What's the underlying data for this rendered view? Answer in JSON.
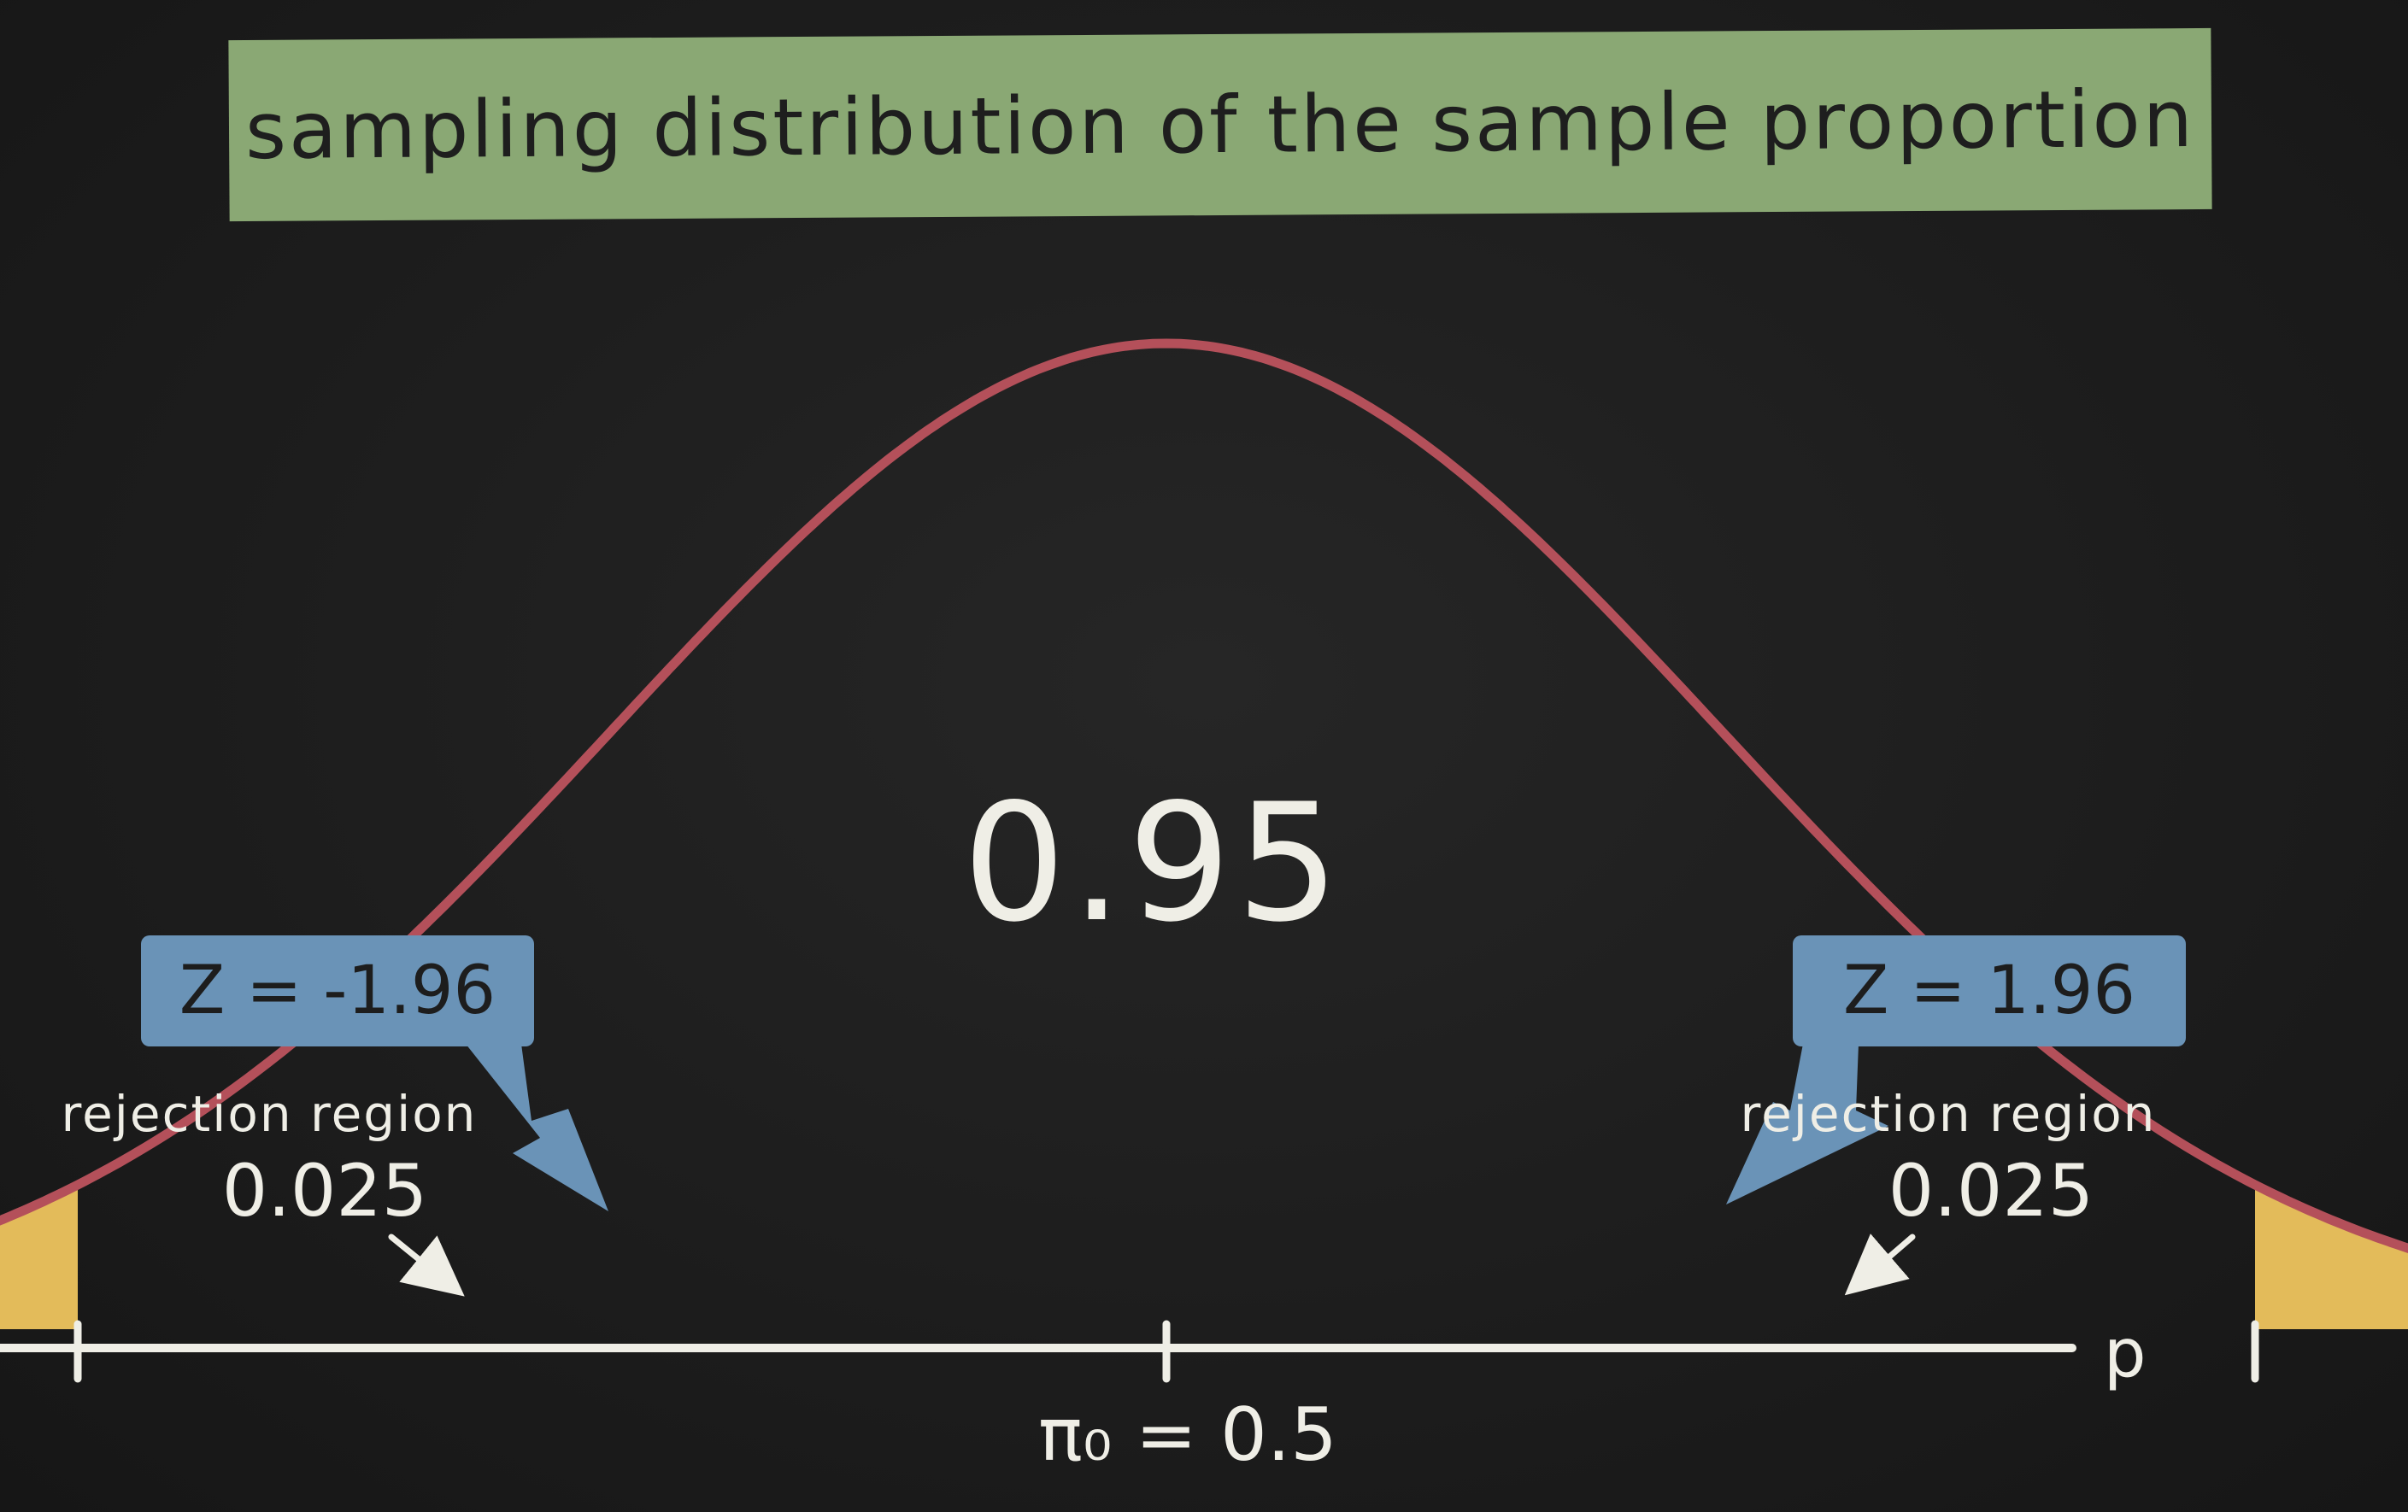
{
  "title": "sampling distribution of the sample proportion",
  "center_probability": "0.95",
  "left_tail": {
    "z_label": "Z = -1.96",
    "region_label": "rejection region",
    "region_value": "0.025"
  },
  "right_tail": {
    "z_label": "Z = 1.96",
    "region_label": "rejection region",
    "region_value": "0.025"
  },
  "axis": {
    "variable": "p",
    "null_label": "π₀ = 0.5"
  },
  "distribution": {
    "type": "normal",
    "mean_z": 0,
    "critical_z": [
      -1.96,
      1.96
    ],
    "z_range": [
      -2.45,
      2.45
    ],
    "center_area": 0.95,
    "tail_area": 0.025
  },
  "colors": {
    "background": "#1d1d1d",
    "banner": "#8aa874",
    "curve": "#b4505a",
    "tail_fill": "#e3bb5a",
    "callout": "#6a93b7",
    "chalk": "#efeee6"
  }
}
